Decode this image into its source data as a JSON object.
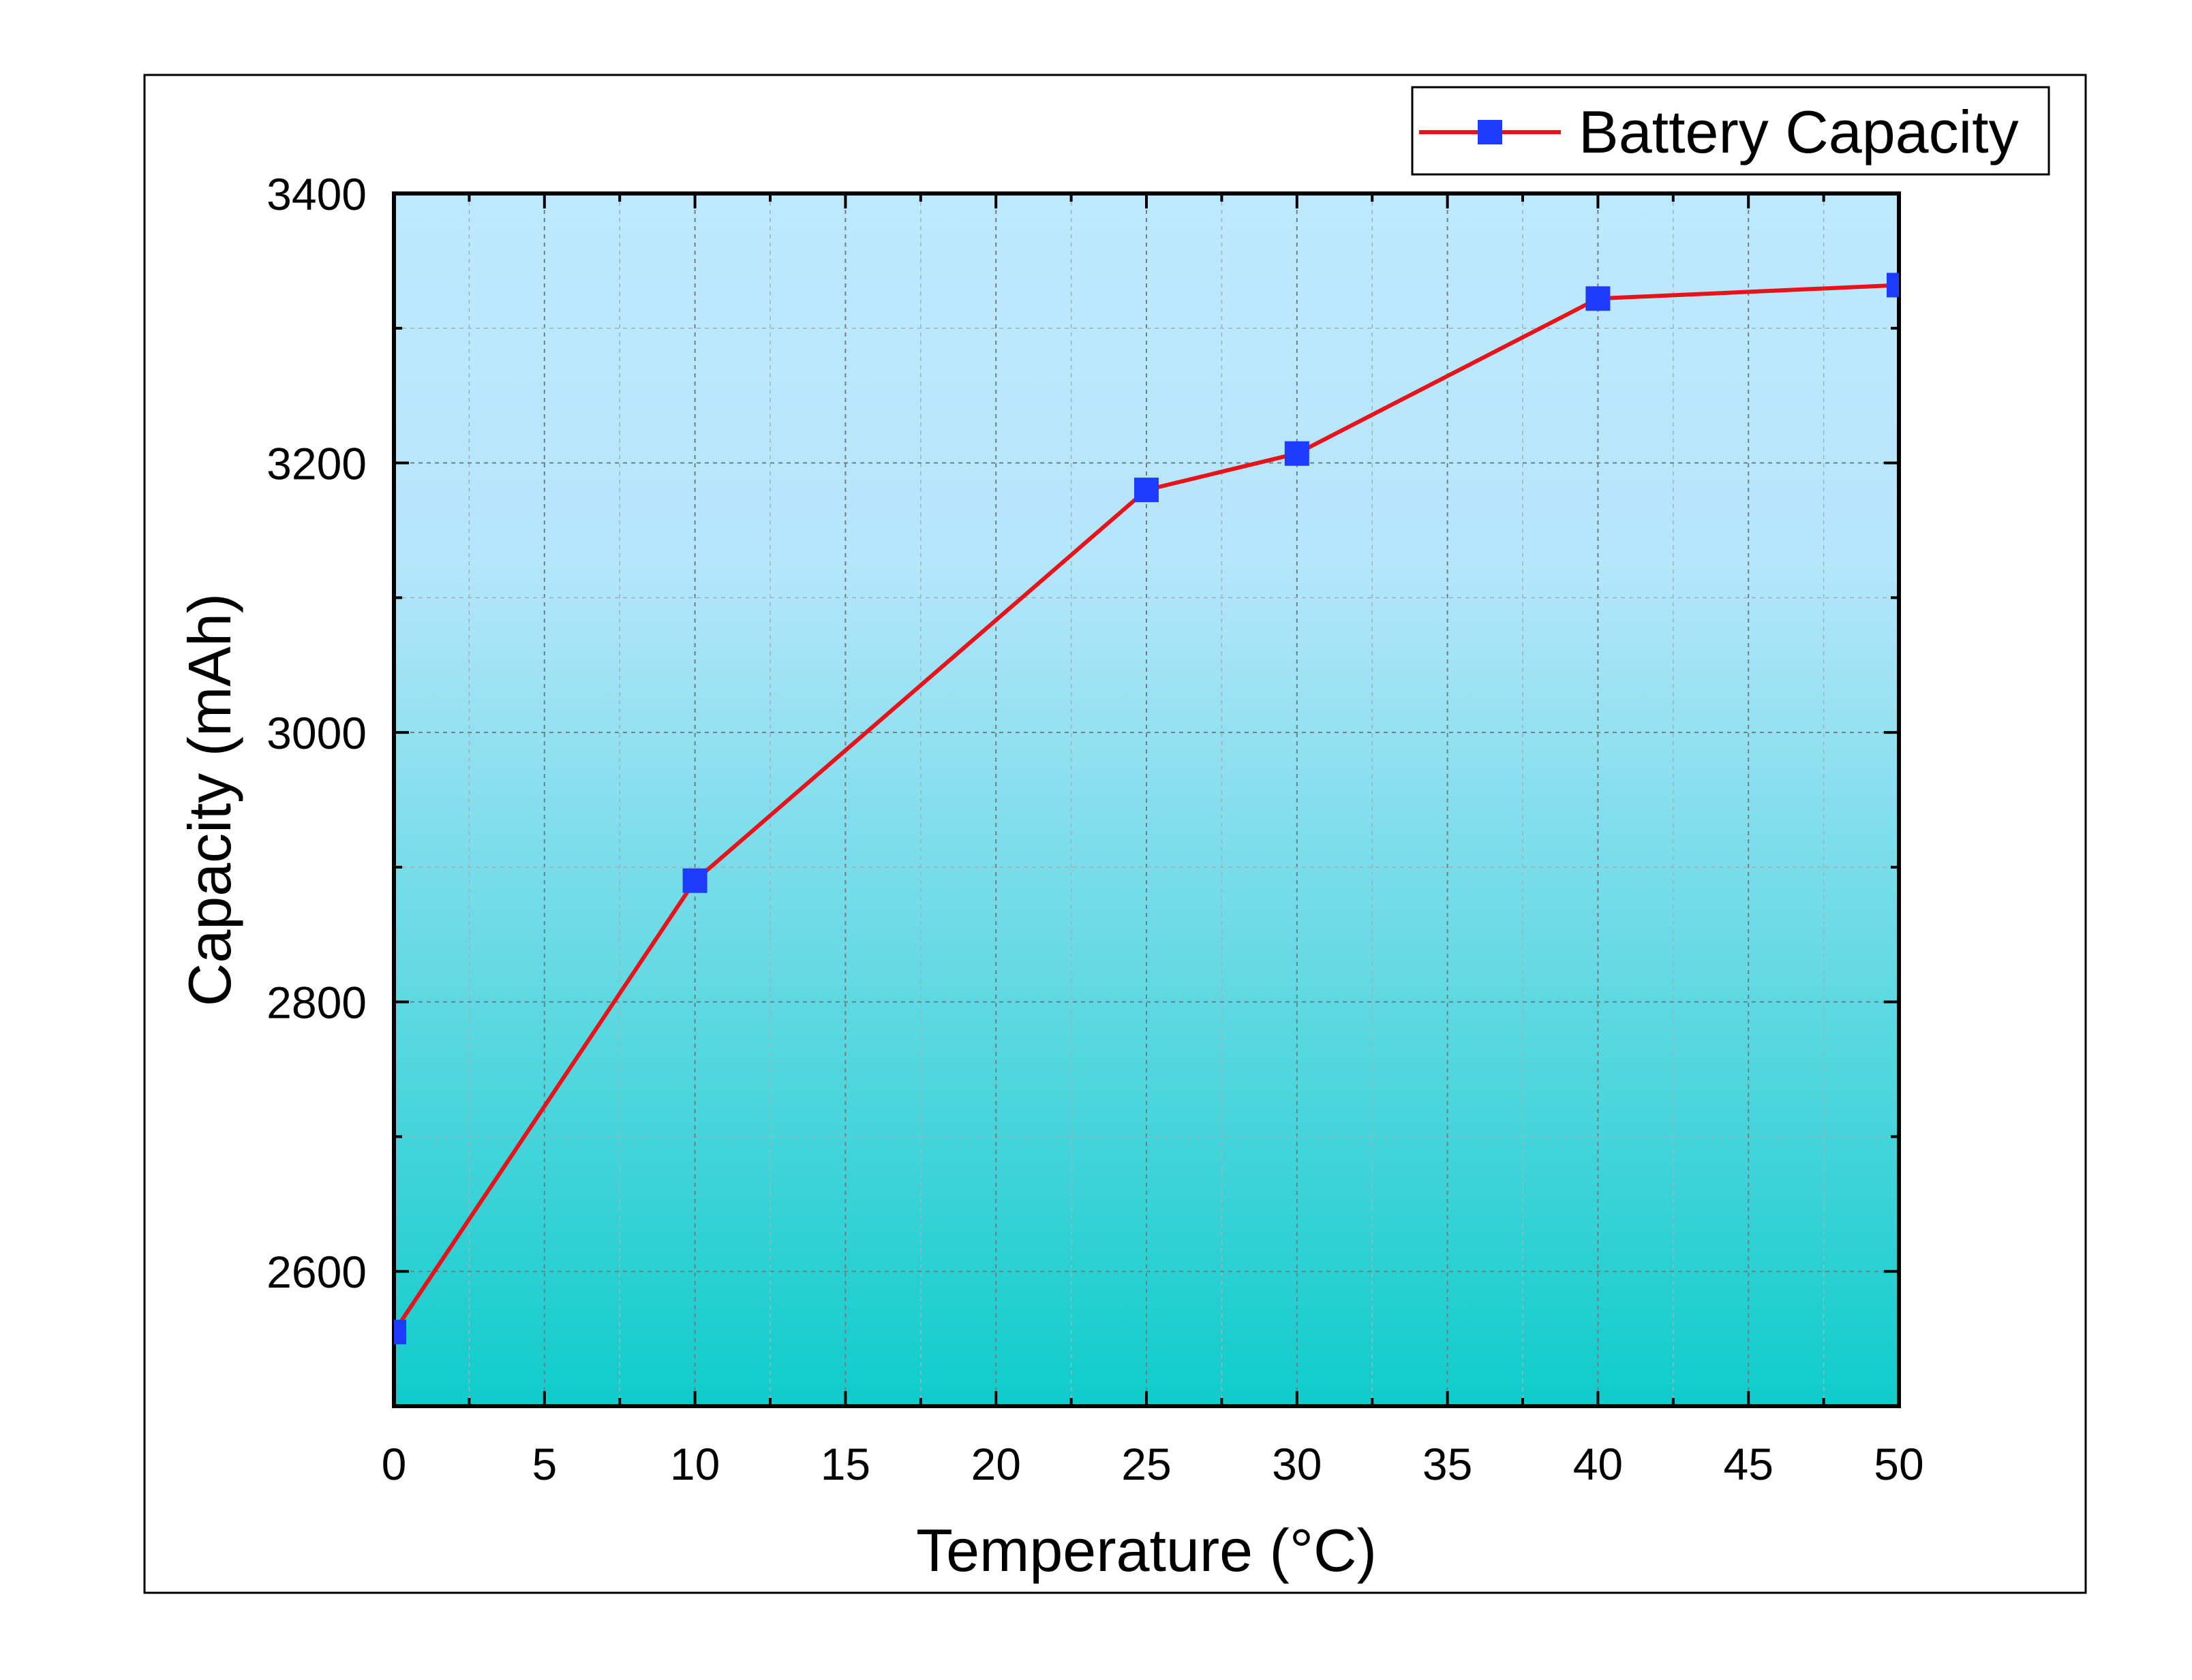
{
  "chart_data": {
    "type": "line",
    "xlabel": "Temperature (°C)",
    "ylabel": "Capacity (mAh)",
    "xlim": [
      0,
      50
    ],
    "ylim": [
      2500,
      3400
    ],
    "x_ticks": [
      0,
      5,
      10,
      15,
      20,
      25,
      30,
      35,
      40,
      45,
      50
    ],
    "x_tick_labels": [
      "0",
      "5",
      "10",
      "15",
      "20",
      "25",
      "30",
      "35",
      "40",
      "45",
      "50"
    ],
    "y_ticks": [
      2600,
      2800,
      3000,
      3200,
      3400
    ],
    "y_tick_labels": [
      "2600",
      "2800",
      "3000",
      "3200",
      "3400"
    ],
    "grid": true,
    "legend_position": "top-right",
    "series": [
      {
        "name": "Battery Capacity",
        "x": [
          0,
          10,
          25,
          30,
          40,
          50
        ],
        "values": [
          2555,
          2890,
          3180,
          3207,
          3322,
          3332
        ],
        "line_color": "#e8131a",
        "marker": "square",
        "marker_color": "#1e3cff"
      }
    ],
    "background_gradient": [
      "#bde9ff",
      "#0fcccb"
    ]
  }
}
